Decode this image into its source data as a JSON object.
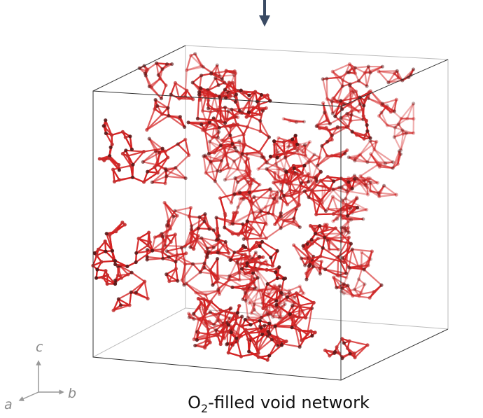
{
  "axes": {
    "c": "c",
    "a": "a",
    "b": "b"
  },
  "caption": {
    "base": "O",
    "subscript": "2",
    "rest": "-filled void network"
  }
}
